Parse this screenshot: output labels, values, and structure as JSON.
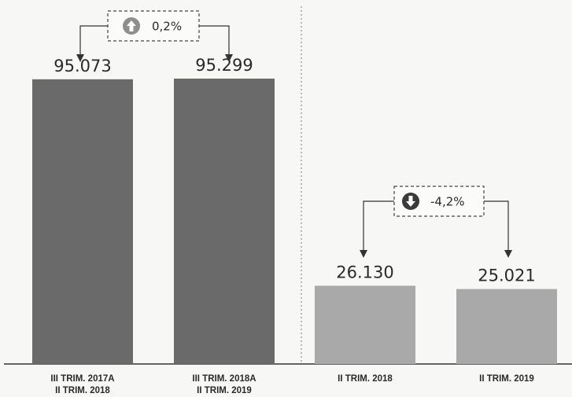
{
  "chart_data": [
    {
      "type": "bar",
      "categories": [
        [
          "III TRIM. 2017A",
          "II TRIM. 2018"
        ],
        [
          "III TRIM. 2018A",
          "II TRIM. 2019"
        ]
      ],
      "values": [
        95073,
        95299
      ],
      "value_labels": [
        "95.073",
        "95.299"
      ],
      "change": {
        "label": "0,2%",
        "direction": "up"
      },
      "bar_color": "#6a6a6a"
    },
    {
      "type": "bar",
      "categories": [
        [
          "II TRIM. 2018"
        ],
        [
          "II TRIM. 2019"
        ]
      ],
      "values": [
        26130,
        25021
      ],
      "value_labels": [
        "26.130",
        "25.021"
      ],
      "change": {
        "label": "-4,2%",
        "direction": "down"
      },
      "bar_color": "#a9a9a9"
    }
  ],
  "colors": {
    "dark_bar": "#6a6a6a",
    "light_bar": "#a9a9a9",
    "text": "#2a2a2a",
    "up_icon": "#8e8e8e",
    "down_icon": "#3a3a3a"
  }
}
